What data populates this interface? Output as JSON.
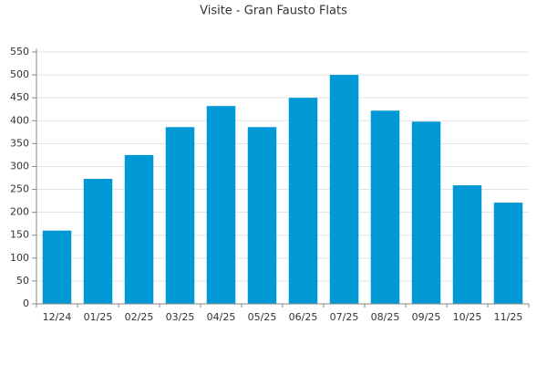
{
  "chart_data": {
    "type": "bar",
    "title": "Visite - Gran Fausto Flats",
    "categories": [
      "12/24",
      "01/25",
      "02/25",
      "03/25",
      "04/25",
      "05/25",
      "06/25",
      "07/25",
      "08/25",
      "09/25",
      "10/25",
      "11/25"
    ],
    "values": [
      160,
      273,
      325,
      386,
      432,
      386,
      450,
      500,
      422,
      398,
      259,
      221
    ],
    "color": "#0099d6",
    "ylim": [
      0,
      550
    ],
    "yticks": [
      0,
      50,
      100,
      150,
      200,
      250,
      300,
      350,
      400,
      450,
      500,
      550
    ],
    "grid": true
  }
}
